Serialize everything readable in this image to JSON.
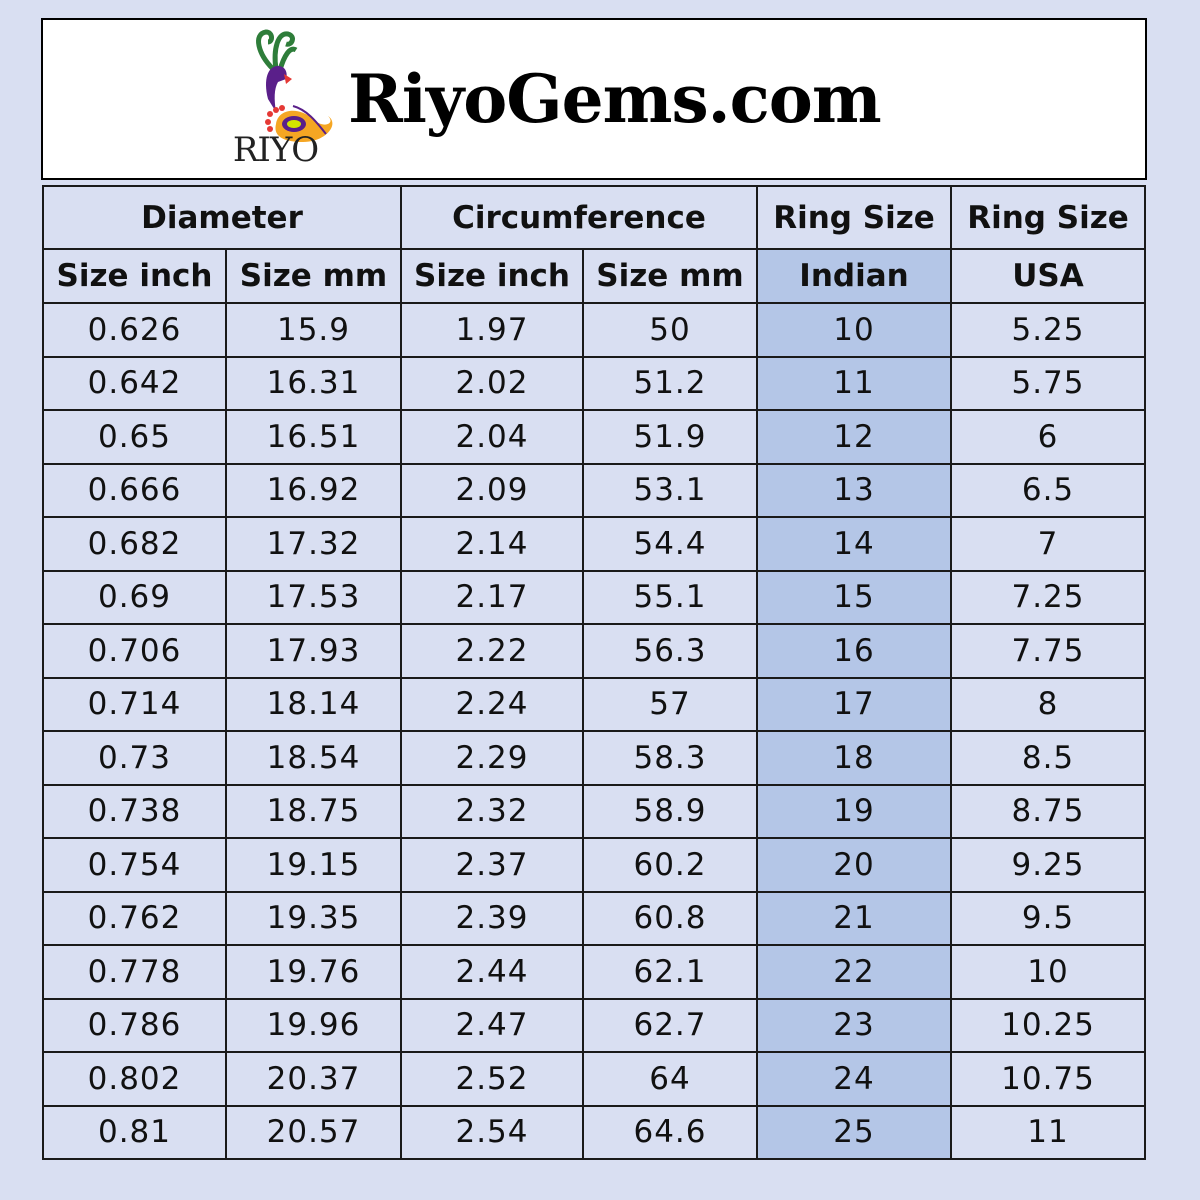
{
  "brand": {
    "logo_text": "RIYO",
    "site": "RiyoGems.com"
  },
  "colors": {
    "background": "#d9dff2",
    "indian_column": "#b4c6e7"
  },
  "header": {
    "groups": [
      "Diameter",
      "Circumference",
      "Ring Size",
      "Ring Size"
    ],
    "columns": [
      "Size inch",
      "Size mm",
      "Size inch",
      "Size mm",
      "Indian",
      "USA"
    ]
  },
  "rows": [
    [
      "0.626",
      "15.9",
      "1.97",
      "50",
      "10",
      "5.25"
    ],
    [
      "0.642",
      "16.31",
      "2.02",
      "51.2",
      "11",
      "5.75"
    ],
    [
      "0.65",
      "16.51",
      "2.04",
      "51.9",
      "12",
      "6"
    ],
    [
      "0.666",
      "16.92",
      "2.09",
      "53.1",
      "13",
      "6.5"
    ],
    [
      "0.682",
      "17.32",
      "2.14",
      "54.4",
      "14",
      "7"
    ],
    [
      "0.69",
      "17.53",
      "2.17",
      "55.1",
      "15",
      "7.25"
    ],
    [
      "0.706",
      "17.93",
      "2.22",
      "56.3",
      "16",
      "7.75"
    ],
    [
      "0.714",
      "18.14",
      "2.24",
      "57",
      "17",
      "8"
    ],
    [
      "0.73",
      "18.54",
      "2.29",
      "58.3",
      "18",
      "8.5"
    ],
    [
      "0.738",
      "18.75",
      "2.32",
      "58.9",
      "19",
      "8.75"
    ],
    [
      "0.754",
      "19.15",
      "2.37",
      "60.2",
      "20",
      "9.25"
    ],
    [
      "0.762",
      "19.35",
      "2.39",
      "60.8",
      "21",
      "9.5"
    ],
    [
      "0.778",
      "19.76",
      "2.44",
      "62.1",
      "22",
      "10"
    ],
    [
      "0.786",
      "19.96",
      "2.47",
      "62.7",
      "23",
      "10.25"
    ],
    [
      "0.802",
      "20.37",
      "2.52",
      "64",
      "24",
      "10.75"
    ],
    [
      "0.81",
      "20.57",
      "2.54",
      "64.6",
      "25",
      "11"
    ]
  ]
}
